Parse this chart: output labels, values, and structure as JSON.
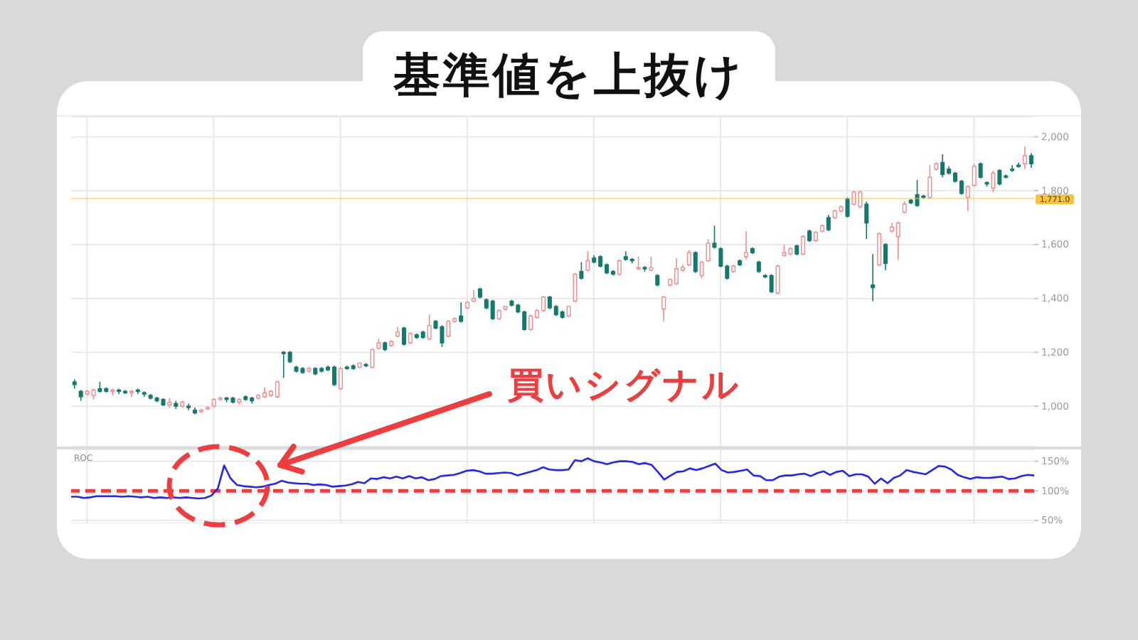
{
  "chart_data": [
    {
      "type": "candlestick",
      "title": "基準値を上抜け",
      "categories": [
        null,
        null,
        null,
        null,
        null,
        null,
        null,
        null,
        null,
        null,
        null,
        null,
        null,
        null,
        null,
        null,
        null,
        null,
        null,
        null,
        null,
        null,
        null,
        null,
        null,
        null,
        null,
        null,
        null,
        null,
        null,
        null,
        null,
        null,
        null,
        null,
        null,
        null,
        null,
        null,
        null,
        null,
        null,
        null,
        null,
        null,
        null,
        null,
        null,
        null,
        null,
        null,
        null,
        null,
        null,
        null,
        null,
        null,
        null,
        null,
        null,
        null,
        null,
        null,
        null,
        null,
        null,
        null,
        null,
        null,
        null,
        null,
        null,
        null,
        null,
        null,
        null,
        null,
        null,
        null,
        null,
        null,
        null,
        null,
        null,
        null,
        null,
        null,
        null,
        null,
        null,
        null,
        null,
        null,
        null,
        null,
        null,
        null,
        null,
        null,
        null,
        null,
        null,
        null,
        null,
        null,
        null,
        null,
        null,
        null,
        null,
        null,
        null,
        null,
        null,
        null,
        null,
        null,
        null,
        null,
        null,
        null,
        null,
        null,
        null,
        null,
        null,
        null,
        null,
        null,
        null,
        null,
        null,
        null,
        null,
        null,
        null,
        null,
        null,
        null,
        null,
        null,
        null,
        null,
        null,
        null,
        null,
        null,
        null,
        null,
        null,
        null
      ],
      "ohlc": [
        [
          1090,
          1100,
          1065,
          1080
        ],
        [
          1055,
          1060,
          1020,
          1035
        ],
        [
          1045,
          1060,
          1040,
          1055
        ],
        [
          1040,
          1065,
          1025,
          1060
        ],
        [
          1065,
          1090,
          1050,
          1055
        ],
        [
          1065,
          1070,
          1050,
          1055
        ],
        [
          1055,
          1065,
          1040,
          1060
        ],
        [
          1060,
          1065,
          1045,
          1055
        ],
        [
          1055,
          1060,
          1045,
          1050
        ],
        [
          1050,
          1060,
          1035,
          1055
        ],
        [
          1060,
          1065,
          1045,
          1055
        ],
        [
          1050,
          1055,
          1035,
          1045
        ],
        [
          1040,
          1045,
          1025,
          1030
        ],
        [
          1030,
          1035,
          1015,
          1020
        ],
        [
          1025,
          1030,
          1000,
          1005
        ],
        [
          1005,
          1030,
          995,
          1015
        ],
        [
          1010,
          1020,
          990,
          1000
        ],
        [
          1000,
          1020,
          995,
          1015
        ],
        [
          1000,
          1010,
          985,
          995
        ],
        [
          985,
          995,
          970,
          975
        ],
        [
          980,
          990,
          975,
          985
        ],
        [
          990,
          1000,
          985,
          995
        ],
        [
          1000,
          1030,
          995,
          1025
        ],
        [
          1025,
          1035,
          1020,
          1030
        ],
        [
          1030,
          1035,
          1015,
          1025
        ],
        [
          1030,
          1035,
          1010,
          1015
        ],
        [
          1015,
          1030,
          1005,
          1025
        ],
        [
          1035,
          1040,
          1020,
          1025
        ],
        [
          1030,
          1035,
          1010,
          1020
        ],
        [
          1030,
          1045,
          1025,
          1040
        ],
        [
          1035,
          1070,
          1030,
          1050
        ],
        [
          1040,
          1060,
          1035,
          1055
        ],
        [
          1035,
          1095,
          1030,
          1090
        ],
        [
          1200,
          1205,
          1105,
          1195
        ],
        [
          1200,
          1205,
          1160,
          1165
        ],
        [
          1145,
          1150,
          1125,
          1130
        ],
        [
          1140,
          1145,
          1120,
          1125
        ],
        [
          1130,
          1145,
          1125,
          1140
        ],
        [
          1140,
          1145,
          1115,
          1120
        ],
        [
          1140,
          1145,
          1125,
          1130
        ],
        [
          1145,
          1150,
          1130,
          1135
        ],
        [
          1145,
          1150,
          1075,
          1080
        ],
        [
          1065,
          1145,
          1060,
          1140
        ],
        [
          1145,
          1150,
          1135,
          1140
        ],
        [
          1150,
          1155,
          1135,
          1140
        ],
        [
          1145,
          1160,
          1140,
          1160
        ],
        [
          1155,
          1160,
          1145,
          1150
        ],
        [
          1145,
          1215,
          1140,
          1210
        ],
        [
          1215,
          1250,
          1210,
          1235
        ],
        [
          1235,
          1240,
          1205,
          1210
        ],
        [
          1225,
          1245,
          1220,
          1240
        ],
        [
          1260,
          1295,
          1255,
          1275
        ],
        [
          1290,
          1295,
          1225,
          1230
        ],
        [
          1235,
          1275,
          1230,
          1270
        ],
        [
          1265,
          1270,
          1250,
          1255
        ],
        [
          1275,
          1280,
          1250,
          1255
        ],
        [
          1250,
          1340,
          1245,
          1300
        ],
        [
          1315,
          1320,
          1285,
          1290
        ],
        [
          1295,
          1300,
          1220,
          1235
        ],
        [
          1260,
          1320,
          1255,
          1315
        ],
        [
          1315,
          1330,
          1310,
          1325
        ],
        [
          1335,
          1385,
          1310,
          1315
        ],
        [
          1365,
          1390,
          1360,
          1385
        ],
        [
          1390,
          1430,
          1385,
          1400
        ],
        [
          1435,
          1440,
          1400,
          1405
        ],
        [
          1395,
          1400,
          1360,
          1365
        ],
        [
          1390,
          1395,
          1320,
          1325
        ],
        [
          1325,
          1360,
          1320,
          1355
        ],
        [
          1360,
          1370,
          1355,
          1370
        ],
        [
          1390,
          1395,
          1370,
          1375
        ],
        [
          1375,
          1380,
          1345,
          1350
        ],
        [
          1350,
          1355,
          1280,
          1285
        ],
        [
          1285,
          1340,
          1280,
          1335
        ],
        [
          1330,
          1360,
          1325,
          1355
        ],
        [
          1355,
          1410,
          1350,
          1405
        ],
        [
          1405,
          1410,
          1360,
          1365
        ],
        [
          1370,
          1375,
          1335,
          1340
        ],
        [
          1350,
          1355,
          1325,
          1330
        ],
        [
          1335,
          1370,
          1330,
          1370
        ],
        [
          1390,
          1495,
          1385,
          1490
        ],
        [
          1500,
          1535,
          1470,
          1475
        ],
        [
          1505,
          1575,
          1500,
          1540
        ],
        [
          1550,
          1560,
          1530,
          1535
        ],
        [
          1555,
          1560,
          1515,
          1520
        ],
        [
          1525,
          1530,
          1490,
          1495
        ],
        [
          1500,
          1505,
          1485,
          1490
        ],
        [
          1490,
          1545,
          1485,
          1540
        ],
        [
          1555,
          1575,
          1540,
          1545
        ],
        [
          1545,
          1550,
          1530,
          1540
        ],
        [
          1510,
          1555,
          1505,
          1515
        ],
        [
          1515,
          1520,
          1500,
          1510
        ],
        [
          1505,
          1555,
          1500,
          1515
        ],
        [
          1485,
          1490,
          1445,
          1450
        ],
        [
          1360,
          1410,
          1315,
          1405
        ],
        [
          1450,
          1475,
          1445,
          1470
        ],
        [
          1455,
          1550,
          1450,
          1510
        ],
        [
          1505,
          1525,
          1500,
          1515
        ],
        [
          1525,
          1580,
          1520,
          1570
        ],
        [
          1570,
          1575,
          1495,
          1500
        ],
        [
          1485,
          1540,
          1475,
          1535
        ],
        [
          1540,
          1620,
          1535,
          1605
        ],
        [
          1605,
          1670,
          1585,
          1590
        ],
        [
          1585,
          1590,
          1515,
          1520
        ],
        [
          1520,
          1525,
          1470,
          1475
        ],
        [
          1500,
          1525,
          1495,
          1520
        ],
        [
          1540,
          1545,
          1520,
          1525
        ],
        [
          1555,
          1650,
          1545,
          1570
        ],
        [
          1585,
          1590,
          1565,
          1570
        ],
        [
          1535,
          1540,
          1495,
          1500
        ],
        [
          1485,
          1490,
          1475,
          1480
        ],
        [
          1485,
          1490,
          1420,
          1425
        ],
        [
          1420,
          1525,
          1415,
          1520
        ],
        [
          1560,
          1600,
          1555,
          1570
        ],
        [
          1565,
          1590,
          1560,
          1585
        ],
        [
          1595,
          1600,
          1560,
          1565
        ],
        [
          1565,
          1635,
          1560,
          1630
        ],
        [
          1650,
          1655,
          1610,
          1615
        ],
        [
          1615,
          1650,
          1610,
          1645
        ],
        [
          1650,
          1675,
          1645,
          1670
        ],
        [
          1700,
          1710,
          1650,
          1655
        ],
        [
          1700,
          1730,
          1695,
          1725
        ],
        [
          1725,
          1745,
          1720,
          1740
        ],
        [
          1770,
          1775,
          1700,
          1705
        ],
        [
          1750,
          1800,
          1745,
          1795
        ],
        [
          1740,
          1800,
          1735,
          1795
        ],
        [
          1750,
          1760,
          1620,
          1680
        ],
        [
          1450,
          1565,
          1390,
          1440
        ],
        [
          1525,
          1645,
          1520,
          1640
        ],
        [
          1600,
          1605,
          1505,
          1530
        ],
        [
          1650,
          1680,
          1645,
          1665
        ],
        [
          1630,
          1685,
          1545,
          1680
        ],
        [
          1720,
          1760,
          1715,
          1750
        ],
        [
          1765,
          1770,
          1750,
          1755
        ],
        [
          1785,
          1840,
          1740,
          1745
        ],
        [
          1780,
          1785,
          1770,
          1775
        ],
        [
          1775,
          1895,
          1770,
          1850
        ],
        [
          1880,
          1905,
          1875,
          1900
        ],
        [
          1905,
          1935,
          1850,
          1860
        ],
        [
          1880,
          1890,
          1860,
          1865
        ],
        [
          1865,
          1870,
          1830,
          1835
        ],
        [
          1835,
          1840,
          1785,
          1790
        ],
        [
          1775,
          1820,
          1725,
          1815
        ],
        [
          1820,
          1900,
          1815,
          1890
        ],
        [
          1900,
          1905,
          1845,
          1850
        ],
        [
          1830,
          1835,
          1815,
          1825
        ],
        [
          1810,
          1875,
          1795,
          1865
        ],
        [
          1875,
          1880,
          1820,
          1825
        ],
        [
          1855,
          1860,
          1845,
          1850
        ],
        [
          1880,
          1895,
          1870,
          1875
        ],
        [
          1895,
          1905,
          1885,
          1890
        ],
        [
          1900,
          1965,
          1880,
          1930
        ],
        [
          1930,
          1940,
          1885,
          1900
        ]
      ],
      "colors": [
        "#13796d",
        "#13796d",
        "#f08c8c",
        "#f08c8c",
        "#13796d",
        "#13796d",
        "#f08c8c",
        "#13796d",
        "#13796d",
        "#f08c8c",
        "#13796d",
        "#13796d",
        "#13796d",
        "#13796d",
        "#13796d",
        "#f08c8c",
        "#13796d",
        "#f08c8c",
        "#13796d",
        "#13796d",
        "#f08c8c",
        "#f08c8c",
        "#f08c8c",
        "#f08c8c",
        "#13796d",
        "#13796d",
        "#f08c8c",
        "#13796d",
        "#13796d",
        "#f08c8c",
        "#f08c8c",
        "#f08c8c",
        "#f08c8c",
        "#13796d",
        "#13796d",
        "#13796d",
        "#13796d",
        "#f08c8c",
        "#13796d",
        "#13796d",
        "#13796d",
        "#13796d",
        "#f08c8c",
        "#13796d",
        "#13796d",
        "#f08c8c",
        "#13796d",
        "#f08c8c",
        "#f08c8c",
        "#13796d",
        "#f08c8c",
        "#f08c8c",
        "#13796d",
        "#f08c8c",
        "#13796d",
        "#13796d",
        "#f08c8c",
        "#13796d",
        "#13796d",
        "#f08c8c",
        "#f08c8c",
        "#13796d",
        "#f08c8c",
        "#f08c8c",
        "#13796d",
        "#13796d",
        "#13796d",
        "#f08c8c",
        "#f08c8c",
        "#13796d",
        "#13796d",
        "#13796d",
        "#f08c8c",
        "#f08c8c",
        "#f08c8c",
        "#13796d",
        "#13796d",
        "#13796d",
        "#f08c8c",
        "#f08c8c",
        "#13796d",
        "#f08c8c",
        "#13796d",
        "#13796d",
        "#13796d",
        "#13796d",
        "#f08c8c",
        "#13796d",
        "#13796d",
        "#f08c8c",
        "#13796d",
        "#f08c8c",
        "#13796d",
        "#f08c8c",
        "#f08c8c",
        "#f08c8c",
        "#f08c8c",
        "#f08c8c",
        "#13796d",
        "#f08c8c",
        "#f08c8c",
        "#13796d",
        "#13796d",
        "#13796d",
        "#f08c8c",
        "#13796d",
        "#f08c8c",
        "#13796d",
        "#13796d",
        "#13796d",
        "#13796d",
        "#f08c8c",
        "#f08c8c",
        "#f08c8c",
        "#13796d",
        "#f08c8c",
        "#13796d",
        "#f08c8c",
        "#f08c8c",
        "#13796d",
        "#f08c8c",
        "#f08c8c",
        "#13796d",
        "#f08c8c",
        "#f08c8c",
        "#13796d",
        "#13796d",
        "#f08c8c",
        "#13796d",
        "#f08c8c",
        "#f08c8c",
        "#f08c8c",
        "#13796d",
        "#13796d",
        "#13796d",
        "#f08c8c",
        "#f08c8c",
        "#13796d",
        "#13796d",
        "#13796d",
        "#13796d",
        "#f08c8c",
        "#f08c8c",
        "#13796d",
        "#13796d",
        "#f08c8c",
        "#13796d",
        "#13796d",
        "#13796d",
        "#13796d",
        "#f08c8c",
        "#13796d"
      ],
      "ylim": [
        850,
        2075
      ],
      "yticks": [
        {
          "value": 1000,
          "label": "1,000"
        },
        {
          "value": 1200,
          "label": "1,200"
        },
        {
          "value": 1400,
          "label": "1,400"
        },
        {
          "value": 1600,
          "label": "1,600"
        },
        {
          "value": 1800,
          "label": "1,800"
        },
        {
          "value": 2000,
          "label": "2,000"
        }
      ],
      "tick_labels": "y",
      "grid": true,
      "ref_lines": [
        {
          "axis": "y",
          "value": 1771,
          "label": "1,771.0",
          "color": "#f5c342"
        }
      ]
    },
    {
      "type": "line",
      "title": "ROC",
      "categories": [
        null,
        null,
        null,
        null,
        null,
        null,
        null,
        null,
        null,
        null,
        null,
        null,
        null,
        null,
        null,
        null,
        null,
        null,
        null,
        null,
        null,
        null,
        null,
        null,
        null,
        null,
        null,
        null,
        null,
        null,
        null,
        null,
        null,
        null,
        null,
        null,
        null,
        null,
        null,
        null,
        null,
        null,
        null,
        null,
        null,
        null,
        null,
        null,
        null,
        null,
        null,
        null,
        null,
        null,
        null,
        null,
        null,
        null,
        null,
        null,
        null,
        null,
        null,
        null,
        null,
        null,
        null,
        null,
        null,
        null,
        null,
        null,
        null,
        null,
        null,
        null,
        null,
        null,
        null,
        null,
        null,
        null,
        null,
        null,
        null,
        null,
        null,
        null,
        null,
        null,
        null,
        null,
        null,
        null,
        null,
        null,
        null,
        null,
        null,
        null,
        null,
        null,
        null,
        null,
        null,
        null,
        null,
        null,
        null,
        null,
        null,
        null,
        null,
        null,
        null,
        null,
        null,
        null,
        null,
        null,
        null,
        null,
        null,
        null,
        null,
        null,
        null,
        null,
        null,
        null,
        null,
        null,
        null,
        null,
        null,
        null,
        null,
        null,
        null,
        null,
        null,
        null,
        null,
        null,
        null,
        null,
        null,
        null,
        null,
        null,
        null,
        null
      ],
      "series": [
        {
          "color": "#2626ee",
          "values": [
            90,
            90,
            88,
            89,
            91,
            91,
            91,
            91,
            90,
            91,
            90,
            89,
            90,
            88,
            89,
            88,
            89,
            88,
            89,
            88,
            87,
            88,
            92,
            104,
            143,
            121,
            110,
            108,
            107,
            106,
            107,
            110,
            112,
            117,
            114,
            113,
            112,
            112,
            110,
            111,
            110,
            107,
            108,
            109,
            111,
            115,
            113,
            121,
            120,
            123,
            121,
            124,
            121,
            125,
            121,
            123,
            118,
            120,
            125,
            126,
            127,
            130,
            134,
            135,
            133,
            129,
            129,
            130,
            131,
            130,
            126,
            129,
            132,
            135,
            140,
            136,
            135,
            135,
            136,
            152,
            150,
            155,
            150,
            148,
            145,
            148,
            150,
            150,
            149,
            145,
            147,
            144,
            132,
            119,
            126,
            132,
            133,
            138,
            135,
            138,
            142,
            146,
            135,
            131,
            132,
            134,
            136,
            126,
            125,
            118,
            118,
            124,
            126,
            126,
            128,
            129,
            125,
            130,
            133,
            127,
            132,
            134,
            125,
            128,
            128,
            124,
            112,
            121,
            113,
            122,
            126,
            135,
            132,
            130,
            128,
            135,
            142,
            141,
            136,
            127,
            123,
            120,
            123,
            122,
            122,
            123,
            124,
            120,
            121,
            125,
            127,
            126
          ]
        }
      ],
      "ylim": [
        45,
        170
      ],
      "yticks": [
        {
          "value": 50,
          "label": "50%"
        },
        {
          "value": 100,
          "label": "100%"
        },
        {
          "value": 150,
          "label": "150%"
        }
      ],
      "tick_labels": "y",
      "grid": true,
      "ref_lines": [
        {
          "axis": "y",
          "value": 100,
          "color": "#f03c3c",
          "line_style": "dashed"
        }
      ],
      "annotations": [
        "買いシグナル"
      ]
    }
  ]
}
